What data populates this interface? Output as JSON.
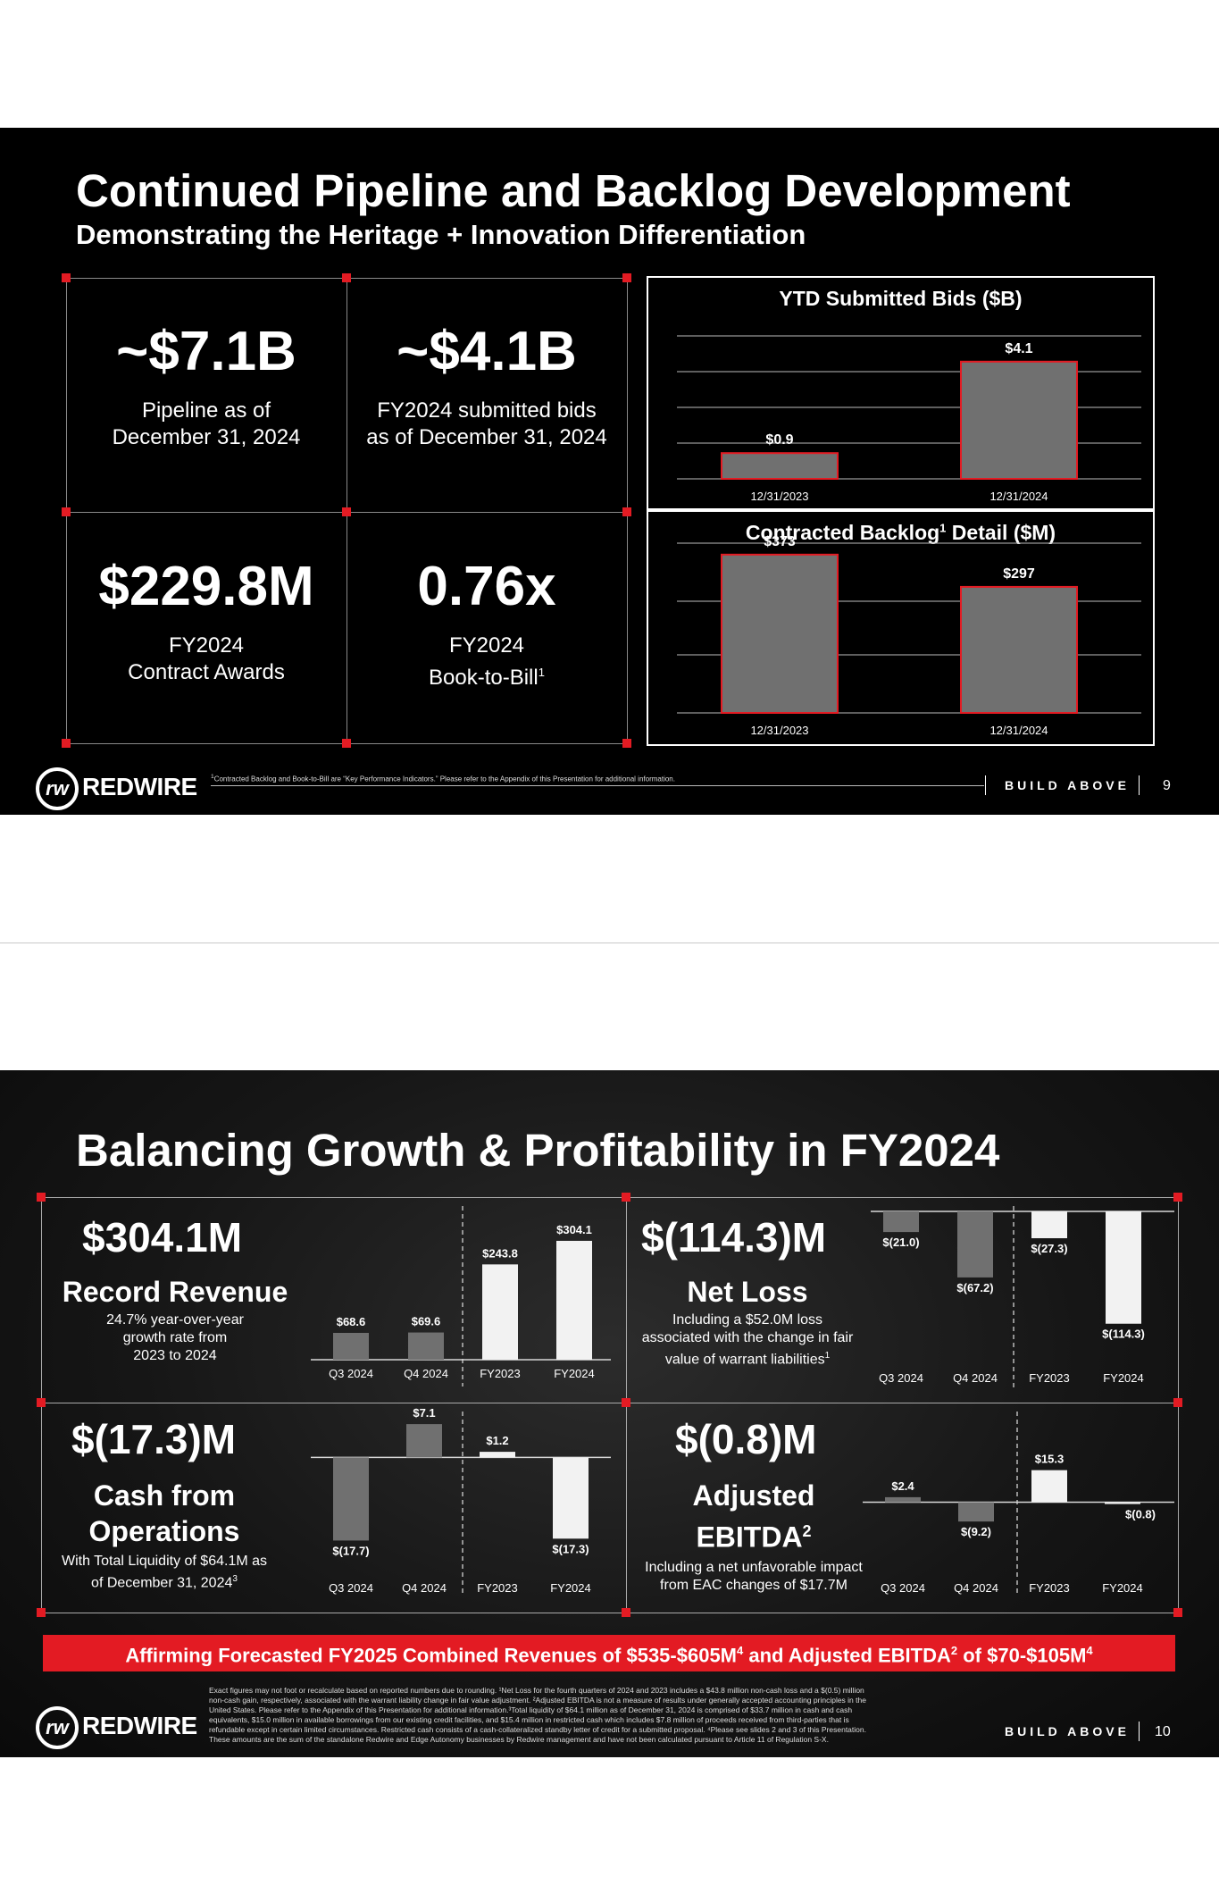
{
  "slide1": {
    "title": "Continued Pipeline and Backlog Development",
    "subtitle": "Demonstrating the Heritage + Innovation Differentiation",
    "kpis": [
      {
        "value": "~$7.1B",
        "caption1": "Pipeline as of",
        "caption2": "December 31, 2024"
      },
      {
        "value": "~$4.1B",
        "caption1": "FY2024 submitted bids",
        "caption2": "as of December 31, 2024"
      },
      {
        "value": "$229.8M",
        "caption1": "FY2024",
        "caption2": "Contract Awards"
      },
      {
        "value": "0.76x",
        "caption1": "FY2024",
        "caption2": "Book-to-Bill",
        "sup": "1"
      }
    ],
    "footnote": "Contracted Backlog and Book-to-Bill are “Key Performance Indicators.”  Please refer to the Appendix of this Presentation for additional information.",
    "footnote_sup": "1",
    "brand": "REDWIRE",
    "logo_mark": "rw",
    "tagline": "BUILD ABOVE",
    "page": "9"
  },
  "slide2": {
    "title": "Balancing Growth & Profitability in FY2024",
    "panels": [
      {
        "value": "$304.1M",
        "label": "Record Revenue",
        "desc1": "24.7% year-over-year",
        "desc2": "growth rate from",
        "desc3": "2023 to 2024"
      },
      {
        "value": "$(114.3)M",
        "label": "Net Loss",
        "desc1": "Including a $52.0M loss",
        "desc2": "associated with the change in fair",
        "desc3": "value of warrant liabilities",
        "desc_sup": "1"
      },
      {
        "value": "$(17.3)M",
        "label1": "Cash from",
        "label2": "Operations",
        "desc1": "With Total Liquidity of $64.1M as",
        "desc2": "of December 31, 2024",
        "desc_sup": "3"
      },
      {
        "value": "$(0.8)M",
        "label1": "Adjusted",
        "label2": "EBITDA",
        "label_sup": "2",
        "desc1": "Including a net unfavorable impact",
        "desc2": "from EAC changes of $17.7M"
      }
    ],
    "banner": {
      "p1": "Affirming Forecasted FY2025 Combined Revenues of $535-$605M",
      "s1": "4",
      "p2": " and Adjusted EBITDA",
      "s2": "2",
      "p3": " of $70-$105M",
      "s3": "4"
    },
    "footnote_lines": [
      "Exact figures may not foot or recalculate based on reported numbers due to rounding. ¹Net Loss for the fourth quarters of 2024 and 2023 includes a $43.8 million non-cash loss and a $(0.5) million",
      "non-cash gain, respectively, associated with the warrant liability change in fair value adjustment. ²Adjusted EBITDA is not a measure of results under generally accepted accounting principles in the",
      "United States. Please refer to the Appendix of this Presentation for additional information.³Total liquidity of $64.1 million as of December 31, 2024 is comprised of $33.7 million in cash and cash",
      "equivalents, $15.0 million in available borrowings from our existing credit facilities, and $15.4 million in restricted cash which includes $7.8 million of proceeds received from third-parties that is",
      "refundable except in certain limited circumstances. Restricted cash consists of a cash-collateralized standby letter of credit for a submitted proposal. ⁴Please see slides 2 and 3 of this Presentation.",
      "These amounts are the sum of the standalone Redwire and Edge Autonomy businesses by Redwire management and have not been calculated pursuant to Article 11 of Regulation S-X."
    ],
    "brand": "REDWIRE",
    "logo_mark": "rw",
    "tagline": "BUILD ABOVE",
    "page": "10"
  },
  "colors": {
    "accent_red": "#e31b23",
    "bar_gray": "#707070",
    "bar_light": "#f2f2f2",
    "background": "#000000"
  },
  "chart_data": [
    {
      "id": "bids",
      "type": "bar",
      "title": "YTD Submitted Bids ($B)",
      "categories": [
        "12/31/2023",
        "12/31/2024"
      ],
      "values": [
        0.9,
        4.1
      ],
      "labels": [
        "$0.9",
        "$4.1"
      ],
      "ylim": [
        0,
        5
      ],
      "grid": true
    },
    {
      "id": "backlog",
      "type": "bar",
      "title_main": "Contracted Backlog",
      "title_sup": "1",
      "title_rest": " Detail ($M)",
      "categories": [
        "12/31/2023",
        "12/31/2024"
      ],
      "values": [
        373,
        297
      ],
      "labels": [
        "$373",
        "$297"
      ],
      "ylim": [
        0,
        400
      ],
      "grid": true
    },
    {
      "id": "revenue",
      "type": "bar",
      "categories": [
        "Q3 2024",
        "Q4 2024",
        "FY2023",
        "FY2024"
      ],
      "values": [
        68.6,
        69.6,
        243.8,
        304.1
      ],
      "labels": [
        "$68.6",
        "$69.6",
        "$243.8",
        "$304.1"
      ],
      "ylim": [
        0,
        320
      ]
    },
    {
      "id": "netloss",
      "type": "bar",
      "categories": [
        "Q3 2024",
        "Q4 2024",
        "FY2023",
        "FY2024"
      ],
      "values": [
        -21.0,
        -67.2,
        -27.3,
        -114.3
      ],
      "labels": [
        "$(21.0)",
        "$(67.2)",
        "$(27.3)",
        "$(114.3)"
      ],
      "ylim": [
        -120,
        0
      ]
    },
    {
      "id": "cashops",
      "type": "bar",
      "categories": [
        "Q3 2024",
        "Q4 2024",
        "FY2023",
        "FY2024"
      ],
      "values": [
        -17.7,
        7.1,
        1.2,
        -17.3
      ],
      "labels": [
        "$(17.7)",
        "$7.1",
        "$1.2",
        "$(17.3)"
      ],
      "ylim": [
        -18,
        7.5
      ]
    },
    {
      "id": "ebitda",
      "type": "bar",
      "categories": [
        "Q3 2024",
        "Q4 2024",
        "FY2023",
        "FY2024"
      ],
      "values": [
        2.4,
        -9.2,
        15.3,
        -0.8
      ],
      "labels": [
        "$2.4",
        "$(9.2)",
        "$15.3",
        "$(0.8)"
      ],
      "ylim": [
        -10,
        16
      ]
    }
  ]
}
